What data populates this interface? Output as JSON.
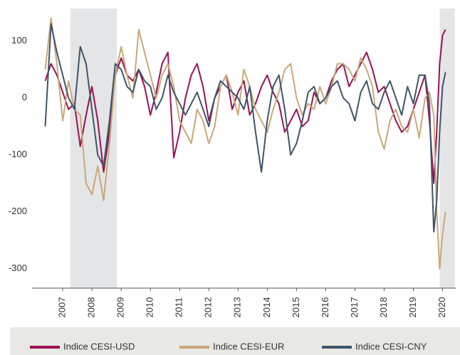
{
  "chart_data": {
    "type": "line",
    "x": [
      2006.9,
      2007.1,
      2007.3,
      2007.5,
      2007.7,
      2007.9,
      2008.1,
      2008.3,
      2008.5,
      2008.7,
      2008.9,
      2009.1,
      2009.3,
      2009.5,
      2009.7,
      2009.9,
      2010.1,
      2010.3,
      2010.5,
      2010.7,
      2010.9,
      2011.1,
      2011.3,
      2011.5,
      2011.7,
      2011.9,
      2012.1,
      2012.3,
      2012.5,
      2012.7,
      2012.9,
      2013.1,
      2013.3,
      2013.5,
      2013.7,
      2013.9,
      2014.1,
      2014.3,
      2014.5,
      2014.7,
      2014.9,
      2015.1,
      2015.3,
      2015.5,
      2015.7,
      2015.9,
      2016.1,
      2016.3,
      2016.5,
      2016.7,
      2016.9,
      2017.1,
      2017.3,
      2017.5,
      2017.7,
      2017.9,
      2018.1,
      2018.3,
      2018.5,
      2018.7,
      2018.9,
      2019.1,
      2019.3,
      2019.5,
      2019.7,
      2019.9,
      2020.05,
      2020.2,
      2020.3,
      2020.4,
      2020.5,
      2020.6
    ],
    "series": [
      {
        "name": "Indice CESI-USD",
        "color": "#9b1056",
        "values": [
          30,
          60,
          40,
          10,
          -20,
          -10,
          -85,
          -30,
          20,
          -40,
          -130,
          -60,
          40,
          70,
          40,
          30,
          50,
          20,
          -30,
          10,
          60,
          80,
          -105,
          -60,
          0,
          40,
          60,
          20,
          -40,
          0,
          20,
          40,
          -20,
          10,
          30,
          -30,
          -10,
          20,
          40,
          10,
          -10,
          -60,
          -40,
          -20,
          -50,
          -40,
          10,
          -10,
          0,
          30,
          50,
          60,
          20,
          40,
          60,
          80,
          50,
          10,
          20,
          -10,
          -40,
          -60,
          -50,
          -20,
          10,
          40,
          -40,
          -150,
          -60,
          60,
          110,
          120
        ]
      },
      {
        "name": "Indice CESI-EUR",
        "color": "#c9a878",
        "values": [
          50,
          140,
          60,
          -40,
          30,
          -20,
          -30,
          -150,
          -170,
          -120,
          -180,
          -80,
          40,
          90,
          40,
          0,
          120,
          80,
          40,
          0,
          40,
          60,
          20,
          -40,
          -60,
          -80,
          -20,
          -40,
          -80,
          -50,
          20,
          40,
          10,
          -30,
          50,
          20,
          -20,
          -40,
          -60,
          -20,
          10,
          50,
          60,
          0,
          -30,
          -10,
          -20,
          20,
          -10,
          20,
          60,
          60,
          50,
          30,
          70,
          50,
          20,
          -60,
          -90,
          -40,
          -20,
          -50,
          -60,
          -20,
          -70,
          0,
          10,
          -30,
          -200,
          -300,
          -240,
          -200
        ]
      },
      {
        "name": "Indice CESI-CNY",
        "color": "#3e5566",
        "values": [
          -50,
          130,
          80,
          40,
          0,
          -20,
          90,
          60,
          -20,
          -100,
          -120,
          -40,
          60,
          50,
          20,
          10,
          50,
          30,
          20,
          -20,
          0,
          40,
          10,
          -10,
          -30,
          -10,
          10,
          -20,
          -50,
          0,
          30,
          20,
          10,
          0,
          -20,
          20,
          -60,
          -130,
          -40,
          20,
          40,
          -20,
          -100,
          -80,
          -40,
          10,
          20,
          -10,
          0,
          20,
          30,
          0,
          -10,
          -40,
          10,
          30,
          -10,
          -20,
          10,
          30,
          0,
          -30,
          20,
          -10,
          40,
          40,
          -10,
          -235,
          -180,
          -60,
          20,
          45
        ]
      }
    ],
    "shaded_periods": [
      [
        2007.76,
        2009.35
      ],
      [
        2020.4,
        2020.92
      ]
    ],
    "xlim": [
      2006.45,
      2020.95
    ],
    "xticks": [
      {
        "value": 2007.5,
        "label": "2007"
      },
      {
        "value": 2008.5,
        "label": "2008"
      },
      {
        "value": 2009.5,
        "label": "2009"
      },
      {
        "value": 2010.5,
        "label": "2010"
      },
      {
        "value": 2011.5,
        "label": "2011"
      },
      {
        "value": 2012.5,
        "label": "2012"
      },
      {
        "value": 2013.5,
        "label": "2013"
      },
      {
        "value": 2014.5,
        "label": "2014"
      },
      {
        "value": 2015.5,
        "label": "2015"
      },
      {
        "value": 2016.5,
        "label": "2016"
      },
      {
        "value": 2017.5,
        "label": "2017"
      },
      {
        "value": 2018.5,
        "label": "2018"
      },
      {
        "value": 2019.5,
        "label": "2019"
      },
      {
        "value": 2020.5,
        "label": "2020"
      }
    ],
    "ylim": [
      -334,
      157
    ],
    "yticks": [
      100,
      0,
      -100,
      -200,
      -300
    ]
  }
}
